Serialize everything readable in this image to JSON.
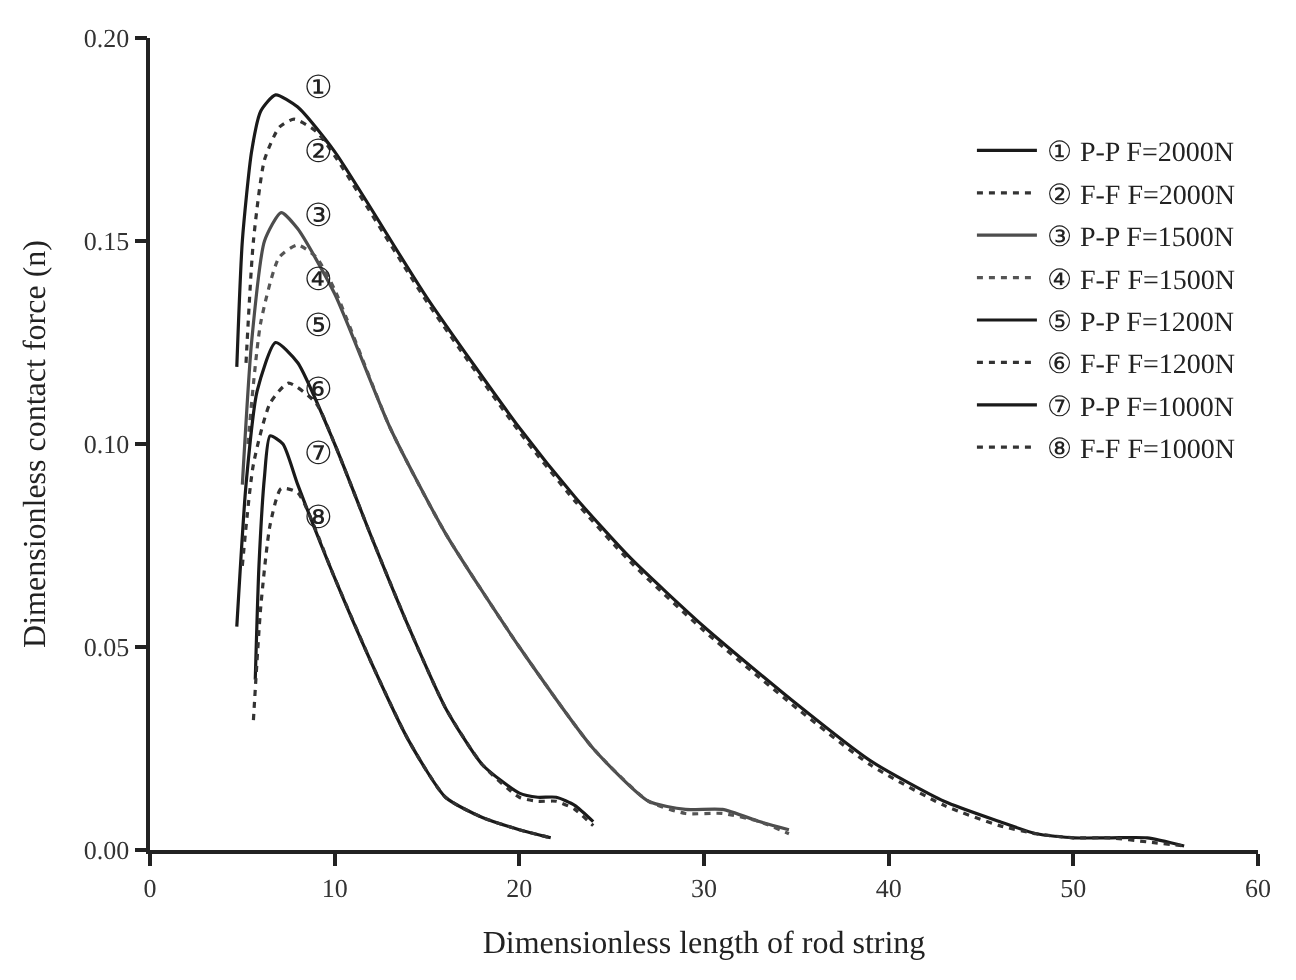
{
  "chart_data": {
    "type": "line",
    "xlabel": "Dimensionless length of rod string",
    "ylabel": "Dimensionless contact force (n)",
    "xlim": [
      0,
      60
    ],
    "xticks": [
      0,
      10,
      20,
      30,
      40,
      50,
      60
    ],
    "ylim": [
      0,
      0.2
    ],
    "yticks": [
      {
        "value": 0,
        "label": "0.00"
      },
      {
        "value": 0.05,
        "label": "0.05"
      },
      {
        "value": 0.1,
        "label": "0.10"
      },
      {
        "value": 0.15,
        "label": "0.15"
      },
      {
        "value": 0.2,
        "label": "0.20"
      }
    ],
    "legend": "top right",
    "marker": "none",
    "series": [
      {
        "name": "① P-P F=2000N",
        "color": "#1a1a1a",
        "line_style": "solid",
        "x": [
          4.7,
          5.0,
          5.5,
          6.0,
          6.8,
          8,
          10,
          15,
          20,
          23,
          26,
          30,
          35,
          39,
          43,
          46,
          48,
          50,
          52,
          54,
          56
        ],
        "values": [
          0.119,
          0.15,
          0.172,
          0.182,
          0.186,
          0.183,
          0.172,
          0.136,
          0.104,
          0.087,
          0.072,
          0.055,
          0.036,
          0.022,
          0.012,
          0.007,
          0.004,
          0.003,
          0.003,
          0.003,
          0.001
        ]
      },
      {
        "name": "② F-F F=2000N",
        "color": "#333333",
        "line_style": "dotted",
        "x": [
          5.2,
          5.6,
          6.2,
          7.0,
          7.8,
          9,
          10,
          15,
          20,
          23,
          26,
          30,
          35,
          39,
          43,
          46,
          48,
          50,
          52,
          54,
          56
        ],
        "values": [
          0.12,
          0.15,
          0.17,
          0.178,
          0.18,
          0.177,
          0.171,
          0.135,
          0.103,
          0.086,
          0.071,
          0.054,
          0.035,
          0.021,
          0.011,
          0.006,
          0.004,
          0.003,
          0.003,
          0.002,
          0.001
        ]
      },
      {
        "name": "③ P-P F=1500N",
        "color": "#4d4d4d",
        "line_style": "solid",
        "x": [
          5.0,
          5.5,
          6.2,
          7.1,
          8,
          10,
          13,
          16,
          20,
          24,
          27,
          29,
          31,
          33,
          34.6
        ],
        "values": [
          0.09,
          0.125,
          0.15,
          0.157,
          0.153,
          0.137,
          0.104,
          0.078,
          0.05,
          0.025,
          0.012,
          0.01,
          0.01,
          0.007,
          0.005
        ]
      },
      {
        "name": "④ F-F F=1500N",
        "color": "#555555",
        "line_style": "dotted",
        "x": [
          5.3,
          6,
          7,
          8,
          9,
          10,
          13,
          16,
          20,
          24,
          27,
          29,
          31,
          33,
          34.6
        ],
        "values": [
          0.1,
          0.13,
          0.146,
          0.149,
          0.146,
          0.138,
          0.104,
          0.078,
          0.05,
          0.025,
          0.012,
          0.009,
          0.009,
          0.007,
          0.004
        ]
      },
      {
        "name": "⑤ P-P F=1200N",
        "color": "#1a1a1a",
        "line_style": "solid",
        "x": [
          4.7,
          5.2,
          5.8,
          6.8,
          8,
          10,
          12,
          14,
          16,
          18,
          20,
          21,
          22,
          23,
          24
        ],
        "values": [
          0.055,
          0.09,
          0.113,
          0.125,
          0.12,
          0.1,
          0.077,
          0.055,
          0.035,
          0.021,
          0.014,
          0.013,
          0.013,
          0.011,
          0.007
        ]
      },
      {
        "name": "⑥ F-F F=1200N",
        "color": "#333333",
        "line_style": "dotted",
        "x": [
          5.0,
          5.6,
          6.5,
          7.5,
          9,
          10,
          12,
          14,
          16,
          18,
          20,
          21,
          22,
          23,
          24
        ],
        "values": [
          0.07,
          0.095,
          0.11,
          0.115,
          0.11,
          0.1,
          0.077,
          0.055,
          0.035,
          0.021,
          0.013,
          0.012,
          0.012,
          0.01,
          0.006
        ]
      },
      {
        "name": "⑦ P-P F=1000N",
        "color": "#1a1a1a",
        "line_style": "solid",
        "x": [
          5.7,
          5.9,
          6.2,
          6.5,
          7.2,
          8,
          10,
          12,
          14,
          16,
          18,
          20,
          21.7
        ],
        "values": [
          0.042,
          0.07,
          0.092,
          0.102,
          0.1,
          0.09,
          0.067,
          0.046,
          0.027,
          0.013,
          0.008,
          0.005,
          0.003
        ]
      },
      {
        "name": "⑧ F-F F=1000N",
        "color": "#333333",
        "line_style": "dotted",
        "x": [
          5.6,
          6,
          6.5,
          7.1,
          8,
          10,
          12,
          14,
          16,
          18,
          20,
          21.7
        ],
        "values": [
          0.032,
          0.06,
          0.08,
          0.089,
          0.088,
          0.067,
          0.046,
          0.027,
          0.013,
          0.008,
          0.005,
          0.003
        ]
      }
    ],
    "annotations": [
      "①",
      "②",
      "③",
      "④",
      "⑤",
      "⑥",
      "⑦",
      "⑧"
    ]
  }
}
